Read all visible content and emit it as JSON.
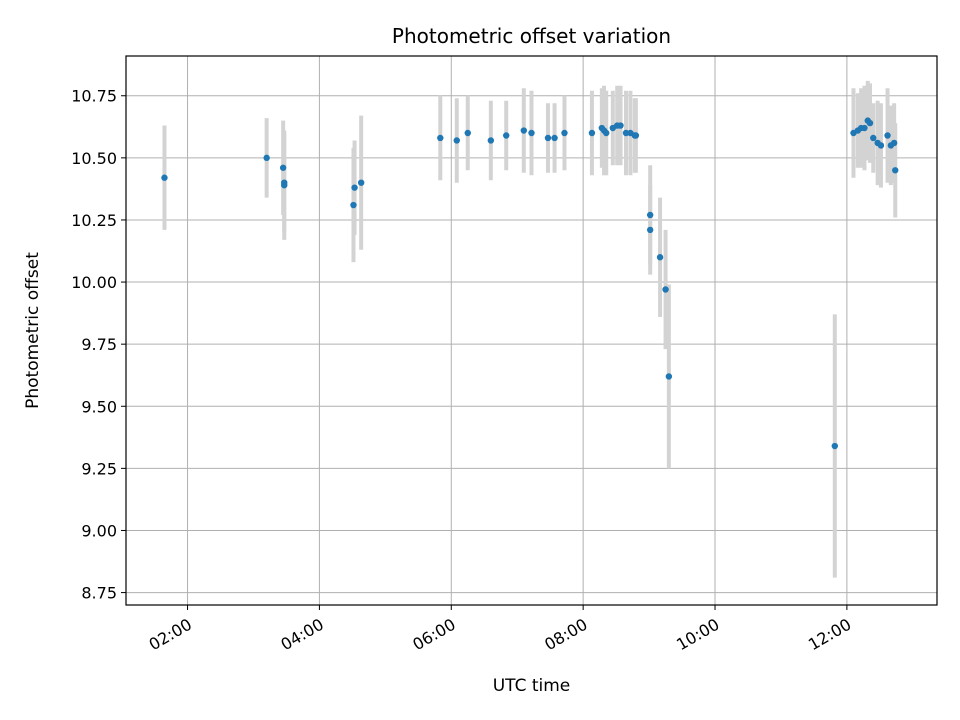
{
  "chart_data": {
    "type": "scatter",
    "title": "Photometric offset variation",
    "xlabel": "UTC time",
    "ylabel": "Photometric offset",
    "x_format": "HH:MM",
    "xlim": [
      "01:04",
      "13:22"
    ],
    "ylim": [
      8.7,
      10.91
    ],
    "xticks": [
      "02:00",
      "04:00",
      "06:00",
      "08:00",
      "10:00",
      "12:00"
    ],
    "yticks": [
      8.75,
      9.0,
      9.25,
      9.5,
      9.75,
      10.0,
      10.25,
      10.5,
      10.75
    ],
    "ytick_labels": [
      "8.75",
      "9.00",
      "9.25",
      "9.50",
      "9.75",
      "10.00",
      "10.25",
      "10.50",
      "10.75"
    ],
    "grid": true,
    "colors": {
      "point": "#1f77b4",
      "error_bar": "#d3d3d3",
      "grid": "#b0b0b0"
    },
    "series": [
      {
        "x": [
          "01:39",
          "03:12",
          "03:27",
          "03:28",
          "03:28",
          "04:31",
          "04:32",
          "04:38",
          "05:50",
          "06:05",
          "06:15",
          "06:36",
          "06:50",
          "07:06",
          "07:13",
          "07:28",
          "07:34",
          "07:43",
          "08:08",
          "08:17",
          "08:19",
          "08:21",
          "08:27",
          "08:31",
          "08:34",
          "08:39",
          "08:43",
          "08:47",
          "08:48",
          "09:01",
          "09:01",
          "09:10",
          "09:15",
          "09:18",
          "11:49",
          "12:06",
          "12:10",
          "12:13",
          "12:16",
          "12:19",
          "12:21",
          "12:24",
          "12:28",
          "12:31",
          "12:37",
          "12:40",
          "12:43",
          "12:44"
        ],
        "y": [
          10.42,
          10.5,
          10.46,
          10.4,
          10.39,
          10.31,
          10.38,
          10.4,
          10.58,
          10.57,
          10.6,
          10.57,
          10.59,
          10.61,
          10.6,
          10.58,
          10.58,
          10.6,
          10.6,
          10.62,
          10.61,
          10.6,
          10.62,
          10.63,
          10.63,
          10.6,
          10.6,
          10.59,
          10.59,
          10.27,
          10.21,
          10.1,
          9.97,
          9.62,
          9.34,
          10.6,
          10.61,
          10.62,
          10.62,
          10.65,
          10.64,
          10.58,
          10.56,
          10.55,
          10.59,
          10.55,
          10.56,
          10.45
        ],
        "yerr": [
          0.21,
          0.16,
          0.19,
          0.2,
          0.22,
          0.23,
          0.19,
          0.27,
          0.17,
          0.17,
          0.15,
          0.16,
          0.14,
          0.17,
          0.17,
          0.14,
          0.14,
          0.15,
          0.17,
          0.16,
          0.18,
          0.17,
          0.15,
          0.16,
          0.16,
          0.17,
          0.17,
          0.15,
          0.15,
          0.2,
          0.18,
          0.24,
          0.24,
          0.37,
          0.53,
          0.18,
          0.15,
          0.16,
          0.17,
          0.16,
          0.16,
          0.14,
          0.17,
          0.17,
          0.19,
          0.16,
          0.16,
          0.19
        ]
      }
    ]
  }
}
